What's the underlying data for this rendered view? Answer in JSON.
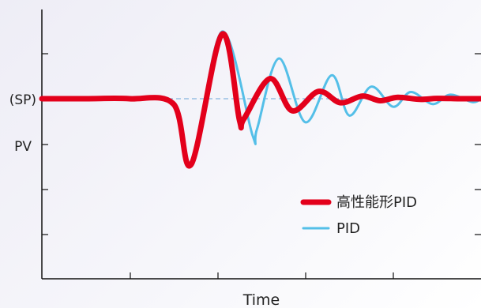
{
  "chart_data": {
    "type": "line",
    "xlabel": "Time",
    "y_tick_labels": [
      "(SP)",
      "PV"
    ],
    "setpoint_value": 0,
    "xlim": [
      0,
      10
    ],
    "ylim": [
      -3,
      1.6
    ],
    "grid": false,
    "legend_position": "right",
    "series": [
      {
        "name": "高性能形PID",
        "color": "#e3001b",
        "x": [
          0,
          1,
          2,
          3,
          3.4,
          4.1,
          4.5,
          4.6,
          5.2,
          5.7,
          6.3,
          6.8,
          7.3,
          7.7,
          8.1,
          8.6,
          9.0,
          9.5,
          10.0
        ],
        "y": [
          0.0,
          0.0,
          0.0,
          -0.08,
          -0.98,
          0.96,
          -0.32,
          -0.3,
          0.3,
          -0.18,
          0.11,
          -0.06,
          0.04,
          -0.03,
          0.02,
          -0.01,
          0.005,
          0.0,
          0.0
        ]
      },
      {
        "name": "PID",
        "color": "#54bfe8",
        "x": [
          0,
          1,
          2,
          3,
          3.4,
          4.1,
          4.8,
          4.9,
          5.4,
          6.0,
          6.6,
          7.0,
          7.5,
          8.0,
          8.4,
          8.9,
          9.3,
          9.8,
          10.0
        ],
        "y": [
          0.0,
          0.0,
          0.0,
          -0.08,
          -0.98,
          1.0,
          -0.55,
          -0.45,
          0.6,
          -0.35,
          0.35,
          -0.25,
          0.18,
          -0.12,
          0.1,
          -0.08,
          0.06,
          -0.05,
          0.0
        ]
      }
    ]
  }
}
